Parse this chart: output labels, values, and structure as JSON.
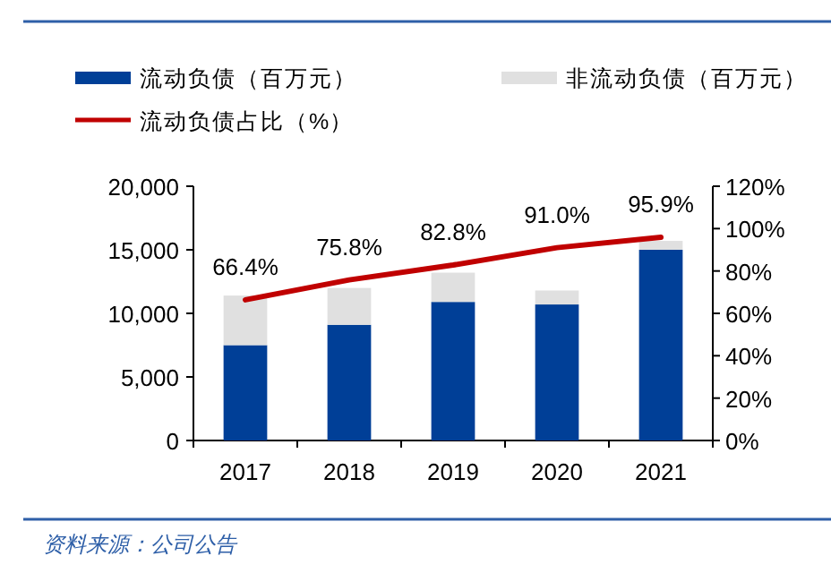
{
  "chart_data": {
    "type": "bar",
    "stacked": true,
    "legend": "top",
    "categories": [
      "2017",
      "2018",
      "2019",
      "2020",
      "2021"
    ],
    "series": [
      {
        "name": "流动负债（百万元）",
        "color": "#003f97",
        "values": [
          7500,
          9100,
          10900,
          10700,
          15000
        ]
      },
      {
        "name": "非流动负债（百万元）",
        "color": "#e0e0e0",
        "values": [
          3900,
          2900,
          2300,
          1100,
          700
        ]
      },
      {
        "name": "流动负债占比（%）",
        "type": "line",
        "axis": "y2",
        "color": "#c00000",
        "values": [
          66.4,
          75.8,
          82.8,
          91.0,
          95.9
        ],
        "value_labels": [
          "66.4%",
          "75.8%",
          "82.8%",
          "91.0%",
          "95.9%"
        ]
      }
    ],
    "ylim": [
      0,
      20000
    ],
    "yticks": [
      0,
      {
        "value": 5000,
        "label": "5,000"
      },
      {
        "value": 10000,
        "label": "10,000"
      },
      {
        "value": 15000,
        "label": "15,000"
      },
      {
        "value": 20000,
        "label": "20,000"
      }
    ],
    "y2lim": [
      0,
      120
    ],
    "y2ticks": [
      {
        "value": 0,
        "label": "0%"
      },
      {
        "value": 20,
        "label": "20%"
      },
      {
        "value": 40,
        "label": "40%"
      },
      {
        "value": 60,
        "label": "60%"
      },
      {
        "value": 80,
        "label": "80%"
      },
      {
        "value": 100,
        "label": "100%"
      },
      {
        "value": 120,
        "label": "120%"
      }
    ],
    "annotations": [
      "资料来源：公司公告"
    ]
  }
}
